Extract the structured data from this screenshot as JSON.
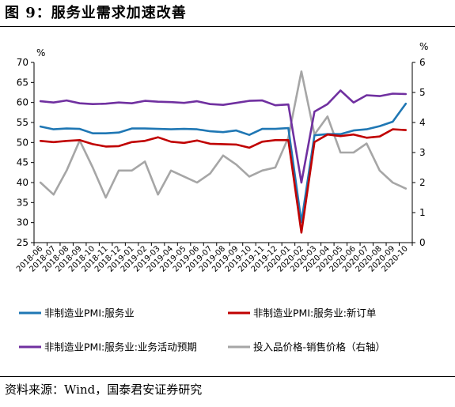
{
  "figure": {
    "title": "图 9：服务业需求加速改善",
    "source": "资料来源：Wind，国泰君安证券研究"
  },
  "chart_data": {
    "type": "line",
    "title": "",
    "left_axis": {
      "unit": "%",
      "ylim": [
        25,
        70
      ],
      "ticks": [
        25,
        30,
        35,
        40,
        45,
        50,
        55,
        60,
        65,
        70
      ]
    },
    "right_axis": {
      "unit": "%",
      "ylim": [
        0,
        6
      ],
      "ticks": [
        0,
        1,
        2,
        3,
        4,
        5,
        6
      ]
    },
    "grid": false,
    "legend_position": "bottom",
    "x": [
      "2018-06",
      "2018-07",
      "2018-08",
      "2018-09",
      "2018-10",
      "2018-11",
      "2018-12",
      "2019-01",
      "2019-02",
      "2019-03",
      "2019-04",
      "2019-05",
      "2019-06",
      "2019-07",
      "2019-08",
      "2019-09",
      "2019-10",
      "2019-11",
      "2019-12",
      "2020-01",
      "2020-02",
      "2020-03",
      "2020-04",
      "2020-05",
      "2020-06",
      "2020-07",
      "2020-08",
      "2020-09",
      "2020-10"
    ],
    "series": [
      {
        "name": "非制造业PMI:服务业",
        "axis": "left",
        "color": "#1f77b4",
        "values": [
          54.0,
          53.3,
          53.5,
          53.4,
          52.3,
          52.3,
          52.5,
          53.5,
          53.5,
          53.4,
          53.3,
          53.4,
          53.3,
          52.8,
          52.6,
          53.0,
          51.9,
          53.4,
          53.4,
          53.6,
          30.1,
          51.8,
          52.1,
          52.1,
          53.0,
          53.3,
          54.1,
          55.2,
          59.7
        ]
      },
      {
        "name": "非制造业PMI:服务业:新订单",
        "axis": "left",
        "color": "#c00000",
        "values": [
          50.4,
          50.1,
          50.4,
          50.6,
          49.6,
          49.0,
          49.1,
          50.1,
          50.4,
          51.3,
          50.2,
          49.9,
          50.5,
          49.7,
          49.6,
          49.5,
          48.7,
          50.2,
          50.6,
          50.6,
          27.5,
          50.1,
          52.0,
          51.6,
          52.0,
          51.2,
          51.5,
          53.3,
          53.1
        ]
      },
      {
        "name": "非制造业PMI:服务业:业务活动预期",
        "axis": "left",
        "color": "#7030a0",
        "values": [
          60.3,
          60.0,
          60.5,
          59.8,
          59.6,
          59.7,
          60.0,
          59.8,
          60.4,
          60.2,
          60.1,
          59.9,
          60.3,
          59.6,
          59.4,
          59.9,
          60.4,
          60.5,
          59.3,
          59.5,
          40.0,
          57.7,
          59.6,
          63.0,
          60.0,
          61.8,
          61.6,
          62.2,
          62.1
        ]
      },
      {
        "name": "投入品价格-销售价格（右轴）",
        "axis": "right",
        "color": "#a6a6a6",
        "values": [
          2.0,
          1.6,
          2.4,
          3.4,
          2.5,
          1.5,
          2.4,
          2.4,
          2.7,
          1.6,
          2.4,
          2.2,
          2.0,
          2.3,
          2.9,
          2.6,
          2.2,
          2.4,
          2.5,
          3.5,
          5.7,
          3.6,
          4.2,
          3.0,
          3.0,
          3.3,
          2.4,
          2.0,
          1.8
        ]
      }
    ]
  }
}
